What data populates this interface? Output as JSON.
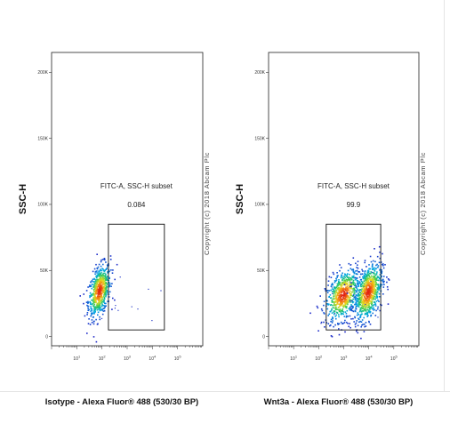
{
  "copyright": "Copyright (c) 2018 Abcam Plc",
  "chart_data": [
    {
      "type": "scatter",
      "title": "",
      "xlabel": "Isotype - Alexa Fluor® 488 (530/30 BP)",
      "ylabel": "SSC-H",
      "x_scale": "log",
      "xlim": [
        1,
        1000000
      ],
      "ylim": [
        -7000,
        215000
      ],
      "x_ticks": [
        "10^1",
        "10^2",
        "10^3",
        "10^4",
        "10^5"
      ],
      "y_ticks": [
        "0",
        "50K",
        "100K",
        "150K",
        "200K"
      ],
      "gate": {
        "name": "FITC-A, SSC-H subset",
        "percent": "0.084",
        "x_range": [
          180,
          30000
        ],
        "y_range": [
          5000,
          85000
        ]
      },
      "populations": [
        {
          "name": "",
          "x_center": 75,
          "y_center": 35000,
          "x_log_spread": 0.22,
          "y_spread": 9000,
          "count": 620
        }
      ]
    },
    {
      "type": "scatter",
      "title": "",
      "xlabel": "Wnt3a - Alexa Fluor® 488 (530/30 BP)",
      "ylabel": "SSC-H",
      "x_scale": "log",
      "xlim": [
        1,
        1000000
      ],
      "ylim": [
        -7000,
        215000
      ],
      "x_ticks": [
        "10^1",
        "10^2",
        "10^3",
        "10^4",
        "10^5"
      ],
      "y_ticks": [
        "0",
        "50K",
        "100K",
        "150K",
        "200K"
      ],
      "gate": {
        "name": "FITC-A, SSC-H subset",
        "percent": "99.9",
        "x_range": [
          200,
          30000
        ],
        "y_range": [
          5000,
          85000
        ]
      },
      "populations": [
        {
          "name": "",
          "x_center": 900,
          "y_center": 32000,
          "x_log_spread": 0.35,
          "y_spread": 9000,
          "count": 650
        },
        {
          "name": "",
          "x_center": 9000,
          "y_center": 34000,
          "x_log_spread": 0.28,
          "y_spread": 10000,
          "count": 750
        }
      ]
    }
  ]
}
